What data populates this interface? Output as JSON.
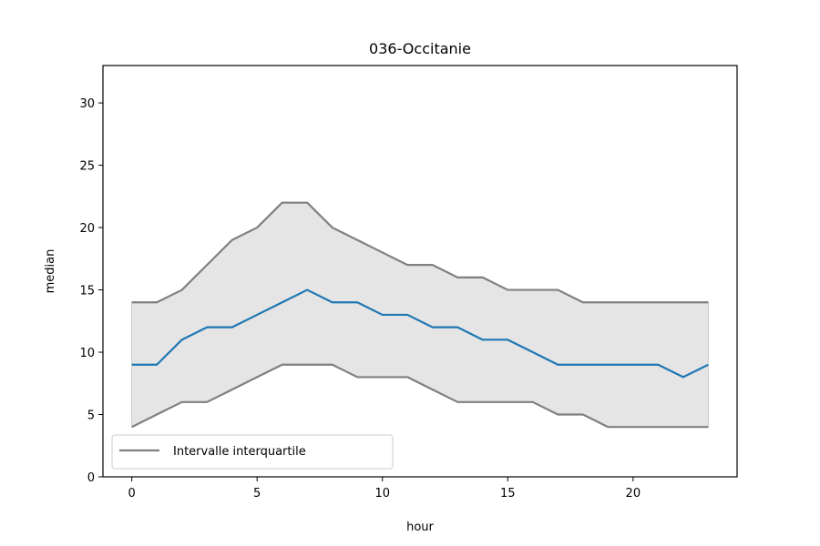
{
  "chart_data": {
    "type": "line",
    "title": "036-Occitanie",
    "xlabel": "hour",
    "ylabel": "median",
    "xlim": [
      -1.15,
      24.15
    ],
    "ylim": [
      0,
      33
    ],
    "xticks": [
      0,
      5,
      10,
      15,
      20
    ],
    "yticks": [
      0,
      5,
      10,
      15,
      20,
      25,
      30
    ],
    "x": [
      0,
      1,
      2,
      3,
      4,
      5,
      6,
      7,
      8,
      9,
      10,
      11,
      12,
      13,
      14,
      15,
      16,
      17,
      18,
      19,
      20,
      21,
      22,
      23
    ],
    "series": [
      {
        "role": "median",
        "color": "#1f77b4",
        "values": [
          9,
          9,
          11,
          12,
          12,
          13,
          14,
          15,
          14,
          14,
          13,
          13,
          12,
          12,
          11,
          11,
          10,
          9,
          9,
          9,
          9,
          9,
          8,
          9
        ]
      },
      {
        "role": "q3",
        "name": "Intervalle interquartile",
        "color": "#808080",
        "values": [
          14,
          14,
          15,
          17,
          19,
          20,
          22,
          22,
          20,
          19,
          18,
          17,
          17,
          16,
          16,
          15,
          15,
          15,
          14,
          14,
          14,
          14,
          14,
          14
        ]
      },
      {
        "role": "q1",
        "color": "#808080",
        "values": [
          4,
          5,
          6,
          6,
          7,
          8,
          9,
          9,
          9,
          8,
          8,
          8,
          7,
          6,
          6,
          6,
          6,
          5,
          5,
          4,
          4,
          4,
          4,
          4
        ]
      }
    ],
    "band_color": "#e5e5e5",
    "legend": {
      "entries": [
        "Intervalle interquartile"
      ],
      "position": "lower-left"
    },
    "grid": false
  }
}
